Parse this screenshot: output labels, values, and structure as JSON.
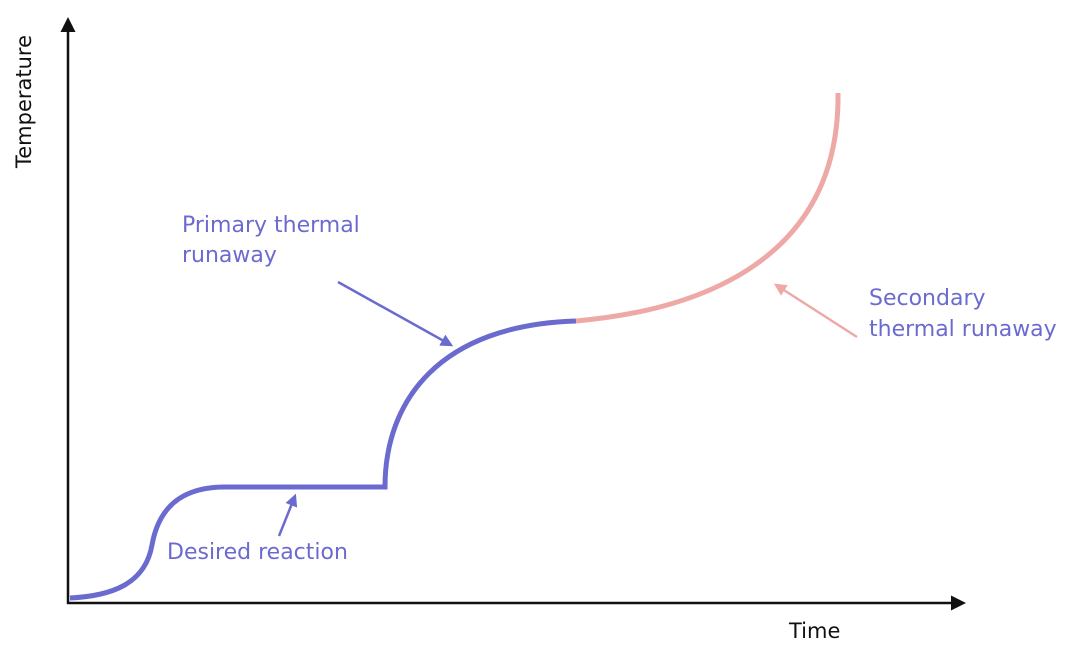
{
  "axes": {
    "y_label": "Temperature",
    "x_label": "Time"
  },
  "annotations": [
    {
      "lines": [
        "Primary thermal",
        "runaway"
      ]
    },
    {
      "lines": [
        "Secondary",
        "thermal runaway"
      ]
    },
    {
      "lines": [
        "Desired reaction"
      ]
    }
  ]
}
